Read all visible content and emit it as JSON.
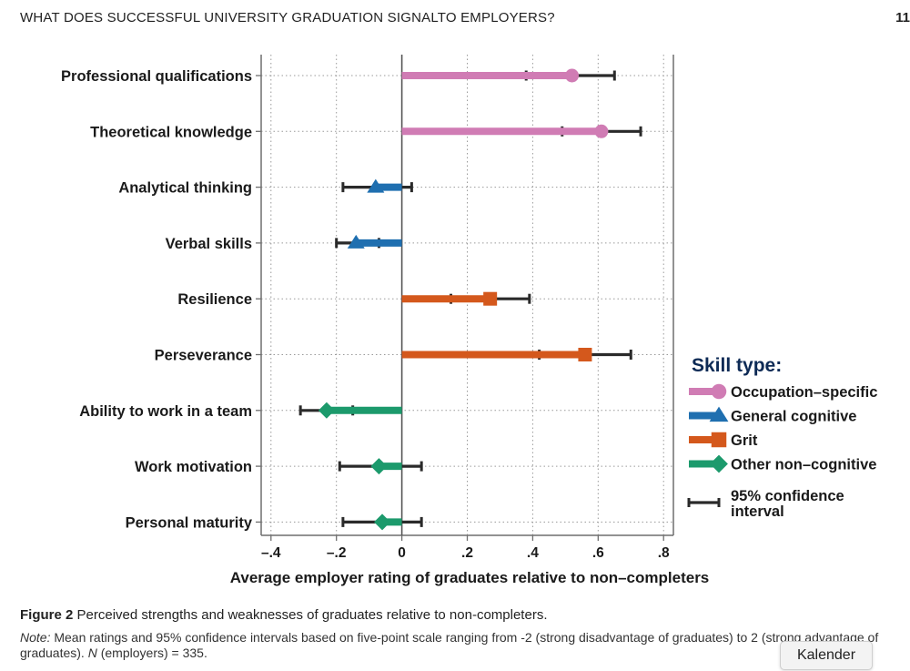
{
  "header": {
    "title": "WHAT DOES SUCCESSFUL UNIVERSITY GRADUATION SIGNALTO EMPLOYERS?",
    "page_number": "11"
  },
  "caption": {
    "figure_label": "Figure 2",
    "text": "Perceived strengths and weaknesses of graduates relative to non-completers.",
    "note_label": "Note:",
    "note_text_1": "Mean ratings and 95% confidence intervals based on five-point scale ranging from -2 (strong disadvantage of graduates) to 2 (strong advantage of graduates).",
    "n_label": "N",
    "note_text_2": "(employers) = 335."
  },
  "kalender_button": {
    "label": "Kalender"
  },
  "chart_data": {
    "type": "dot-and-bar",
    "xlabel": "Average employer rating of graduates relative to non–completers",
    "xlim": [
      -0.43,
      0.83
    ],
    "xticks": [
      -0.4,
      -0.2,
      0,
      0.2,
      0.4,
      0.6,
      0.8
    ],
    "xtick_labels": [
      "–.4",
      "–.2",
      "0",
      ".2",
      ".4",
      ".6",
      ".8"
    ],
    "grid": "dotted",
    "legend": {
      "placement": "right",
      "title": "Skill type:",
      "ci_label_lines": [
        "95% confidence",
        "interval"
      ]
    },
    "skill_types": [
      {
        "key": "occ",
        "label": "Occupation–specific",
        "color": "#d07cb4",
        "marker": "circle"
      },
      {
        "key": "gen",
        "label": "General cognitive",
        "color": "#1f6fb0",
        "marker": "triangle"
      },
      {
        "key": "grit",
        "label": "Grit",
        "color": "#d4581c",
        "marker": "square"
      },
      {
        "key": "other",
        "label": "Other non–cognitive",
        "color": "#1c9a6c",
        "marker": "diamond"
      }
    ],
    "items": [
      {
        "label": "Professional qualifications",
        "type": "occ",
        "value": 0.52,
        "ci": [
          0.38,
          0.65
        ]
      },
      {
        "label": "Theoretical knowledge",
        "type": "occ",
        "value": 0.61,
        "ci": [
          0.49,
          0.73
        ]
      },
      {
        "label": "Analytical thinking",
        "type": "gen",
        "value": -0.08,
        "ci": [
          -0.18,
          0.03
        ]
      },
      {
        "label": "Verbal skills",
        "type": "gen",
        "value": -0.14,
        "ci": [
          -0.2,
          -0.07
        ]
      },
      {
        "label": "Resilience",
        "type": "grit",
        "value": 0.27,
        "ci": [
          0.15,
          0.39
        ]
      },
      {
        "label": "Perseverance",
        "type": "grit",
        "value": 0.56,
        "ci": [
          0.42,
          0.7
        ]
      },
      {
        "label": "Ability to work in a team",
        "type": "other",
        "value": -0.23,
        "ci": [
          -0.31,
          -0.15
        ]
      },
      {
        "label": "Work motivation",
        "type": "other",
        "value": -0.07,
        "ci": [
          -0.19,
          0.06
        ]
      },
      {
        "label": "Personal maturity",
        "type": "other",
        "value": -0.06,
        "ci": [
          -0.18,
          0.06
        ]
      }
    ]
  }
}
